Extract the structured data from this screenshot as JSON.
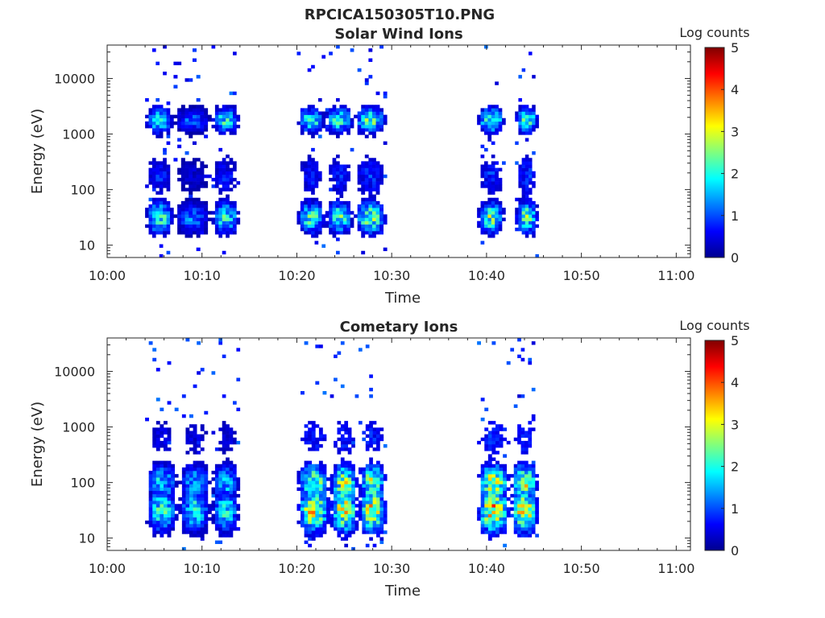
{
  "figure": {
    "title": "RPCICA150305T10.PNG"
  },
  "colorbar": {
    "label": "Log counts",
    "ticks": [
      "0",
      "1",
      "2",
      "3",
      "4",
      "5"
    ],
    "range": [
      0,
      5
    ],
    "colormap": "jet"
  },
  "chart_data": [
    {
      "type": "heatmap",
      "title": "Solar Wind Ions",
      "xlabel": "Time",
      "ylabel": "Energy (eV)",
      "x_ticks": [
        "10:00",
        "10:10",
        "10:20",
        "10:30",
        "10:40",
        "10:50",
        "11:00"
      ],
      "y_ticks": [
        "10",
        "100",
        "1000",
        "10000"
      ],
      "y_scale": "log",
      "ylim": [
        6,
        40000
      ],
      "xlim_minutes": [
        0,
        61.5
      ],
      "z_label": "Log counts",
      "zlim": [
        0,
        5
      ],
      "bursts": [
        {
          "start": "10:04",
          "end": "10:07",
          "peak": 2.6
        },
        {
          "start": "10:07",
          "end": "10:11",
          "peak": 1.4
        },
        {
          "start": "10:11",
          "end": "10:14",
          "peak": 2.4
        },
        {
          "start": "10:20",
          "end": "10:23",
          "peak": 2.5
        },
        {
          "start": "10:23",
          "end": "10:26",
          "peak": 2.6
        },
        {
          "start": "10:26",
          "end": "10:29.5",
          "peak": 2.9
        },
        {
          "start": "10:39",
          "end": "10:42",
          "peak": 2.8
        },
        {
          "start": "10:43",
          "end": "10:45.5",
          "peak": 2.9
        }
      ]
    },
    {
      "type": "heatmap",
      "title": "Cometary Ions",
      "xlabel": "Time",
      "ylabel": "Energy (eV)",
      "x_ticks": [
        "10:00",
        "10:10",
        "10:20",
        "10:30",
        "10:40",
        "10:50",
        "11:00"
      ],
      "y_ticks": [
        "10",
        "100",
        "1000",
        "10000"
      ],
      "y_scale": "log",
      "ylim": [
        6,
        40000
      ],
      "xlim_minutes": [
        0,
        61.5
      ],
      "z_label": "Log counts",
      "zlim": [
        0,
        5
      ],
      "bursts": [
        {
          "start": "10:04",
          "end": "10:07.5",
          "peak": 2.4
        },
        {
          "start": "10:07.5",
          "end": "10:11",
          "peak": 2.2
        },
        {
          "start": "10:11",
          "end": "10:14",
          "peak": 2.2
        },
        {
          "start": "10:20",
          "end": "10:23.5",
          "peak": 3.5
        },
        {
          "start": "10:23.5",
          "end": "10:26.5",
          "peak": 3.6
        },
        {
          "start": "10:26.5",
          "end": "10:29.5",
          "peak": 3.6
        },
        {
          "start": "10:39",
          "end": "10:42.5",
          "peak": 4.0
        },
        {
          "start": "10:42.5",
          "end": "10:45.5",
          "peak": 3.8
        }
      ]
    }
  ]
}
